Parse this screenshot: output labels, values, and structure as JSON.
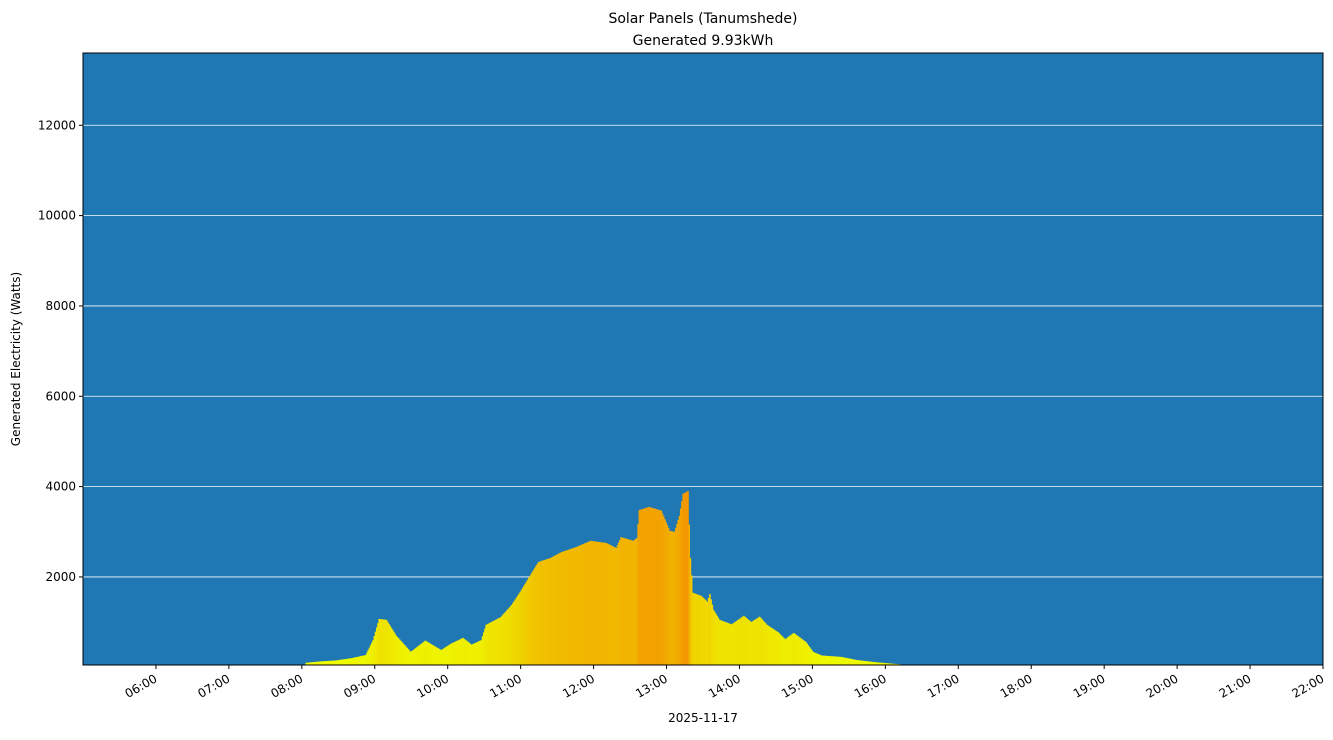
{
  "chart_data": {
    "type": "area",
    "title": "Solar Panels (Tanumshede)",
    "subtitle": "Generated 9.93kWh",
    "xlabel": "2025-11-17",
    "ylabel": "Generated Electricity (Watts)",
    "xlim": [
      "05:00",
      "22:00"
    ],
    "ylim": [
      50,
      13600
    ],
    "grid": "horizontal",
    "x_ticks": [
      "06:00",
      "07:00",
      "08:00",
      "09:00",
      "10:00",
      "11:00",
      "12:00",
      "13:00",
      "14:00",
      "15:00",
      "16:00",
      "17:00",
      "18:00",
      "19:00",
      "20:00",
      "21:00",
      "22:00"
    ],
    "y_ticks": [
      2000,
      4000,
      6000,
      8000,
      10000,
      12000
    ],
    "colors": {
      "background": "#1f77b4",
      "low": "#eeff00",
      "high": "#f39800",
      "grid": "#ffffff"
    },
    "points": [
      [
        "08:03",
        100
      ],
      [
        "08:15",
        130
      ],
      [
        "08:27",
        150
      ],
      [
        "08:40",
        200
      ],
      [
        "08:52",
        270
      ],
      [
        "08:58",
        600
      ],
      [
        "09:03",
        1070
      ],
      [
        "09:09",
        1050
      ],
      [
        "09:17",
        700
      ],
      [
        "09:29",
        340
      ],
      [
        "09:41",
        590
      ],
      [
        "09:54",
        380
      ],
      [
        "10:02",
        520
      ],
      [
        "10:12",
        650
      ],
      [
        "10:19",
        500
      ],
      [
        "10:27",
        600
      ],
      [
        "10:31",
        940
      ],
      [
        "10:43",
        1110
      ],
      [
        "10:52",
        1380
      ],
      [
        "11:00",
        1710
      ],
      [
        "11:06",
        1980
      ],
      [
        "11:14",
        2330
      ],
      [
        "11:24",
        2420
      ],
      [
        "11:33",
        2550
      ],
      [
        "11:45",
        2660
      ],
      [
        "11:57",
        2800
      ],
      [
        "12:10",
        2750
      ],
      [
        "12:18",
        2640
      ],
      [
        "12:22",
        2880
      ],
      [
        "12:32",
        2800
      ],
      [
        "12:35",
        2860
      ],
      [
        "12:37",
        3480
      ],
      [
        "12:45",
        3550
      ],
      [
        "12:55",
        3470
      ],
      [
        "13:02",
        3020
      ],
      [
        "13:06",
        3000
      ],
      [
        "13:10",
        3350
      ],
      [
        "13:13",
        3840
      ],
      [
        "13:17",
        3900
      ],
      [
        "13:19",
        2420
      ],
      [
        "13:21",
        1650
      ],
      [
        "13:28",
        1580
      ],
      [
        "13:33",
        1450
      ],
      [
        "13:35",
        1620
      ],
      [
        "13:38",
        1270
      ],
      [
        "13:43",
        1050
      ],
      [
        "13:53",
        950
      ],
      [
        "14:03",
        1140
      ],
      [
        "14:09",
        1000
      ],
      [
        "14:16",
        1120
      ],
      [
        "14:22",
        940
      ],
      [
        "14:31",
        780
      ],
      [
        "14:37",
        620
      ],
      [
        "14:44",
        760
      ],
      [
        "14:54",
        560
      ],
      [
        "15:00",
        340
      ],
      [
        "15:07",
        260
      ],
      [
        "15:23",
        230
      ],
      [
        "15:36",
        160
      ],
      [
        "15:52",
        110
      ],
      [
        "16:09",
        70
      ],
      [
        "16:17",
        50
      ],
      [
        "16:20",
        50
      ]
    ]
  }
}
